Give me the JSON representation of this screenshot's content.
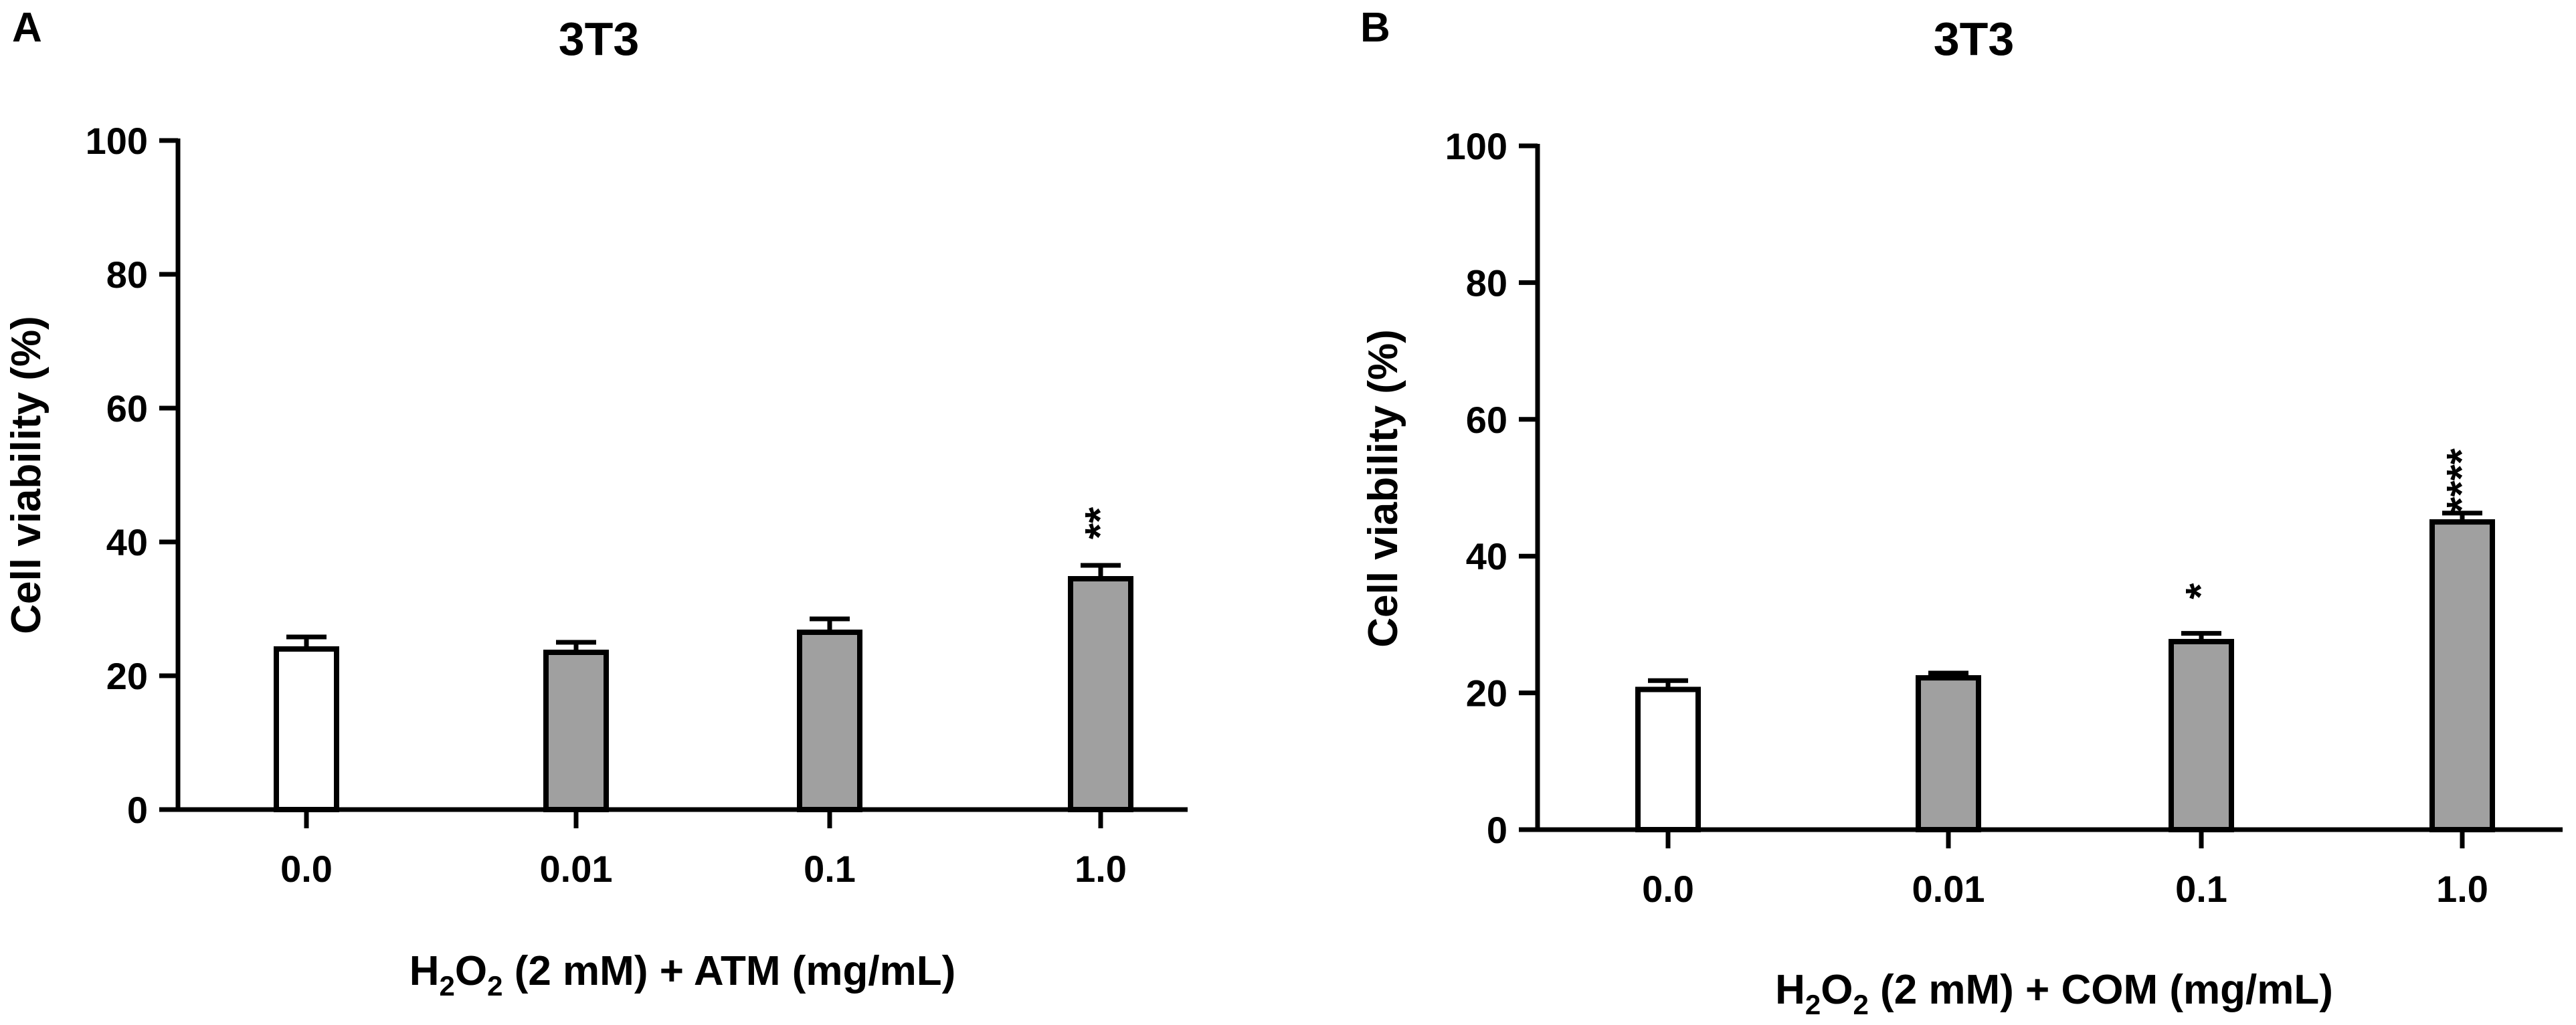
{
  "chart_data": [
    {
      "panel": "A",
      "type": "bar",
      "title": "3T3",
      "ylabel": "Cell viability (%)",
      "xlabel": {
        "main": "H",
        "sub1": "2",
        "mid": "O",
        "sub2": "2",
        "rest": " (2 mM) + ATM (mg/mL)"
      },
      "categories": [
        "0.0",
        "0.01",
        "0.1",
        "1.0"
      ],
      "values": [
        24,
        23.5,
        26.5,
        34.5
      ],
      "errors": [
        1.8,
        1.5,
        2.0,
        2.0
      ],
      "significance": [
        "",
        "",
        "",
        "**"
      ],
      "bar_fills": [
        "#ffffff",
        "#a0a0a0",
        "#a0a0a0",
        "#a0a0a0"
      ],
      "ylim": [
        0,
        100
      ],
      "yticks": [
        0,
        20,
        40,
        60,
        80,
        100
      ]
    },
    {
      "panel": "B",
      "type": "bar",
      "title": "3T3",
      "ylabel": "Cell viability (%)",
      "xlabel": {
        "main": "H",
        "sub1": "2",
        "mid": "O",
        "sub2": "2",
        "rest": " (2 mM) + COM (mg/mL)"
      },
      "categories": [
        "0.0",
        "0.01",
        "0.1",
        "1.0"
      ],
      "values": [
        20.5,
        22.2,
        27.5,
        45
      ],
      "errors": [
        1.3,
        0.7,
        1.2,
        1.3
      ],
      "significance": [
        "",
        "",
        "*",
        "****"
      ],
      "bar_fills": [
        "#ffffff",
        "#a0a0a0",
        "#a0a0a0",
        "#a0a0a0"
      ],
      "ylim": [
        0,
        100
      ],
      "yticks": [
        0,
        20,
        40,
        60,
        80,
        100
      ]
    }
  ]
}
